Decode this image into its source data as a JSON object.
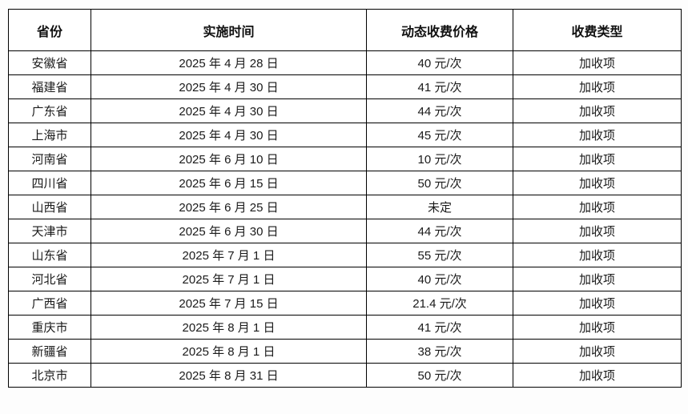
{
  "page": {
    "background_color": "#fdfdfd",
    "border_color": "#000000",
    "header_text_color": "#111111",
    "body_text_color": "#1a1a1a"
  },
  "table": {
    "columns": [
      "省份",
      "实施时间",
      "动态收费价格",
      "收费类型"
    ],
    "rows": [
      [
        "安徽省",
        "2025 年 4 月 28 日",
        "40 元/次",
        "加收项"
      ],
      [
        "福建省",
        "2025 年 4 月 30 日",
        "41 元/次",
        "加收项"
      ],
      [
        "广东省",
        "2025 年 4 月 30 日",
        "44 元/次",
        "加收项"
      ],
      [
        "上海市",
        "2025 年 4 月 30 日",
        "45 元/次",
        "加收项"
      ],
      [
        "河南省",
        "2025 年 6 月 10 日",
        "10 元/次",
        "加收项"
      ],
      [
        "四川省",
        "2025 年 6 月 15 日",
        "50 元/次",
        "加收项"
      ],
      [
        "山西省",
        "2025 年 6 月 25 日",
        "未定",
        "加收项"
      ],
      [
        "天津市",
        "2025 年 6 月 30 日",
        "44 元/次",
        "加收项"
      ],
      [
        "山东省",
        "2025 年 7 月 1 日",
        "55 元/次",
        "加收项"
      ],
      [
        "河北省",
        "2025 年 7 月 1 日",
        "40 元/次",
        "加收项"
      ],
      [
        "广西省",
        "2025 年 7 月 15 日",
        "21.4 元/次",
        "加收项"
      ],
      [
        "重庆市",
        "2025 年 8 月 1 日",
        "41 元/次",
        "加收项"
      ],
      [
        "新疆省",
        "2025 年 8 月 1 日",
        "38 元/次",
        "加收项"
      ],
      [
        "北京市",
        "2025 年 8 月 31 日",
        "50 元/次",
        "加收项"
      ]
    ]
  }
}
